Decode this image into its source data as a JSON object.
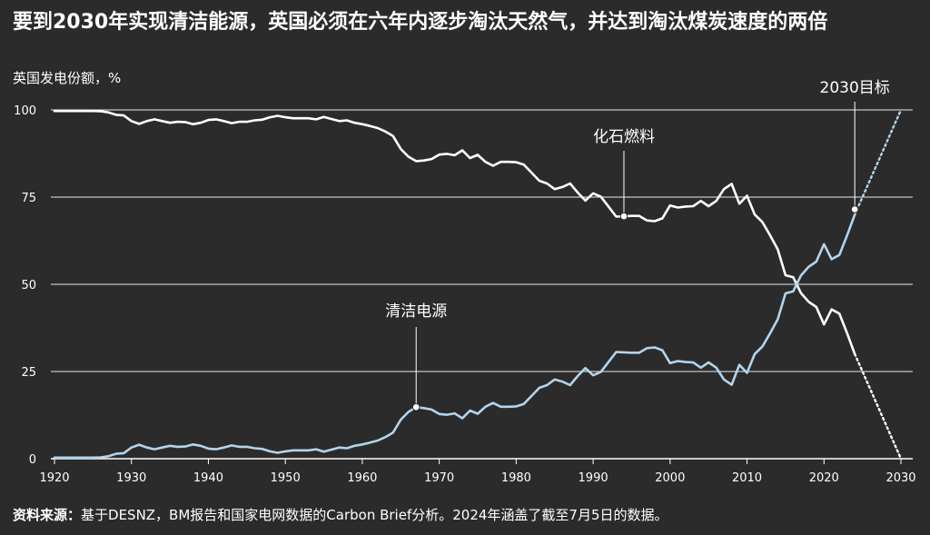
{
  "title": "要到2030年实现清洁能源，英国必须在六年内逐步淘汰天然气，并达到淘汰煤炭速度的两倍",
  "subtitle": "英国发电份额，%",
  "source": {
    "label": "资料来源：",
    "text": "基于DESNZ，BM报告和国家电网数据的Carbon Brief分析。2024年涵盖了截至7月5日的数据。"
  },
  "colors": {
    "background": "#2b2b2b",
    "fossil": "#ffffff",
    "clean": "#b3d4ec",
    "grid": "#ffffff"
  },
  "chart_data": {
    "type": "line",
    "title": "要到2030年实现清洁能源，英国必须在六年内逐步淘汰天然气，并达到淘汰煤炭速度的两倍",
    "ylabel": "英国发电份额，%",
    "xlim": [
      1920,
      2030
    ],
    "ylim": [
      0,
      100
    ],
    "x_ticks": [
      1920,
      1930,
      1940,
      1950,
      1960,
      1970,
      1980,
      1990,
      2000,
      2010,
      2020,
      2030
    ],
    "y_ticks": [
      0,
      25,
      50,
      75,
      100
    ],
    "grid": "horizontal",
    "annotations": [
      {
        "text": "化石燃料",
        "x": 1994,
        "y": 69.5,
        "series": "fossil"
      },
      {
        "text": "清洁电源",
        "x": 1967,
        "y": 14.8,
        "series": "clean"
      },
      {
        "text": "2030目标",
        "x": 2024,
        "y": 71.5,
        "series": "clean"
      }
    ],
    "series": [
      {
        "key": "fossil",
        "name": "化石燃料",
        "x": [
          1920,
          1921,
          1922,
          1923,
          1924,
          1925,
          1926,
          1927,
          1928,
          1929,
          1930,
          1931,
          1932,
          1933,
          1934,
          1935,
          1936,
          1937,
          1938,
          1939,
          1940,
          1941,
          1942,
          1943,
          1944,
          1945,
          1946,
          1947,
          1948,
          1949,
          1950,
          1951,
          1952,
          1953,
          1954,
          1955,
          1956,
          1957,
          1958,
          1959,
          1960,
          1961,
          1962,
          1963,
          1964,
          1965,
          1966,
          1967,
          1968,
          1969,
          1970,
          1971,
          1972,
          1973,
          1974,
          1975,
          1976,
          1977,
          1978,
          1979,
          1980,
          1981,
          1982,
          1983,
          1984,
          1985,
          1986,
          1987,
          1988,
          1989,
          1990,
          1991,
          1992,
          1993,
          1994,
          1995,
          1996,
          1997,
          1998,
          1999,
          2000,
          2001,
          2002,
          2003,
          2004,
          2005,
          2006,
          2007,
          2008,
          2009,
          2010,
          2011,
          2012,
          2013,
          2014,
          2015,
          2016,
          2017,
          2018,
          2019,
          2020,
          2021,
          2022,
          2023,
          2024
        ],
        "values": [
          99.7,
          99.7,
          99.7,
          99.7,
          99.7,
          99.7,
          99.6,
          99.3,
          98.6,
          98.4,
          96.8,
          96.0,
          96.8,
          97.3,
          96.8,
          96.3,
          96.6,
          96.5,
          95.9,
          96.3,
          97.1,
          97.3,
          96.8,
          96.2,
          96.6,
          96.6,
          97.0,
          97.2,
          97.9,
          98.3,
          97.9,
          97.6,
          97.6,
          97.6,
          97.3,
          98.0,
          97.4,
          96.8,
          97.0,
          96.3,
          95.9,
          95.4,
          94.8,
          93.8,
          92.5,
          88.8,
          86.6,
          85.3,
          85.5,
          85.9,
          87.2,
          87.4,
          87.0,
          88.4,
          86.2,
          87.1,
          85.1,
          84.0,
          85.1,
          85.1,
          85.0,
          84.3,
          82.0,
          79.7,
          78.9,
          77.3,
          77.9,
          78.9,
          76.3,
          74.0,
          76.1,
          75.1,
          72.3,
          69.4,
          69.5,
          69.6,
          69.6,
          68.3,
          68.1,
          68.9,
          72.6,
          72.0,
          72.3,
          72.4,
          73.9,
          72.4,
          73.9,
          77.3,
          78.8,
          73.1,
          75.4,
          70.0,
          67.8,
          64.0,
          60.0,
          52.6,
          52.0,
          47.5,
          45.0,
          43.5,
          38.5,
          42.8,
          41.6,
          36.0,
          30.0
        ]
      },
      {
        "key": "clean",
        "name": "清洁电源",
        "x": [
          1920,
          1921,
          1922,
          1923,
          1924,
          1925,
          1926,
          1927,
          1928,
          1929,
          1930,
          1931,
          1932,
          1933,
          1934,
          1935,
          1936,
          1937,
          1938,
          1939,
          1940,
          1941,
          1942,
          1943,
          1944,
          1945,
          1946,
          1947,
          1948,
          1949,
          1950,
          1951,
          1952,
          1953,
          1954,
          1955,
          1956,
          1957,
          1958,
          1959,
          1960,
          1961,
          1962,
          1963,
          1964,
          1965,
          1966,
          1967,
          1968,
          1969,
          1970,
          1971,
          1972,
          1973,
          1974,
          1975,
          1976,
          1977,
          1978,
          1979,
          1980,
          1981,
          1982,
          1983,
          1984,
          1985,
          1986,
          1987,
          1988,
          1989,
          1990,
          1991,
          1992,
          1993,
          1994,
          1995,
          1996,
          1997,
          1998,
          1999,
          2000,
          2001,
          2002,
          2003,
          2004,
          2005,
          2006,
          2007,
          2008,
          2009,
          2010,
          2011,
          2012,
          2013,
          2014,
          2015,
          2016,
          2017,
          2018,
          2019,
          2020,
          2021,
          2022,
          2023,
          2024
        ],
        "values": [
          0.3,
          0.3,
          0.3,
          0.3,
          0.3,
          0.3,
          0.4,
          0.7,
          1.4,
          1.6,
          3.2,
          4.0,
          3.2,
          2.7,
          3.2,
          3.7,
          3.4,
          3.5,
          4.1,
          3.7,
          2.9,
          2.7,
          3.2,
          3.8,
          3.4,
          3.4,
          3.0,
          2.8,
          2.1,
          1.7,
          2.1,
          2.4,
          2.4,
          2.4,
          2.7,
          2.0,
          2.6,
          3.2,
          3.0,
          3.7,
          4.1,
          4.6,
          5.2,
          6.2,
          7.5,
          11.2,
          13.4,
          14.8,
          14.5,
          14.1,
          12.8,
          12.6,
          13.0,
          11.6,
          13.8,
          12.9,
          14.9,
          16.0,
          14.9,
          14.9,
          15.0,
          15.7,
          18.0,
          20.3,
          21.1,
          22.7,
          22.1,
          21.1,
          23.7,
          26.0,
          23.9,
          24.9,
          27.7,
          30.6,
          30.5,
          30.4,
          30.4,
          31.7,
          31.9,
          31.1,
          27.4,
          28.0,
          27.7,
          27.6,
          26.1,
          27.6,
          26.1,
          22.7,
          21.2,
          26.9,
          24.6,
          30.0,
          32.2,
          36.0,
          40.0,
          47.4,
          48.0,
          52.5,
          55.0,
          56.5,
          61.5,
          57.2,
          58.4,
          64.0,
          70.0
        ]
      }
    ],
    "projections": [
      {
        "series": "fossil",
        "x": [
          2024,
          2030
        ],
        "values": [
          30.0,
          0
        ]
      },
      {
        "series": "clean",
        "x": [
          2024,
          2030
        ],
        "values": [
          70.0,
          100
        ]
      }
    ]
  }
}
